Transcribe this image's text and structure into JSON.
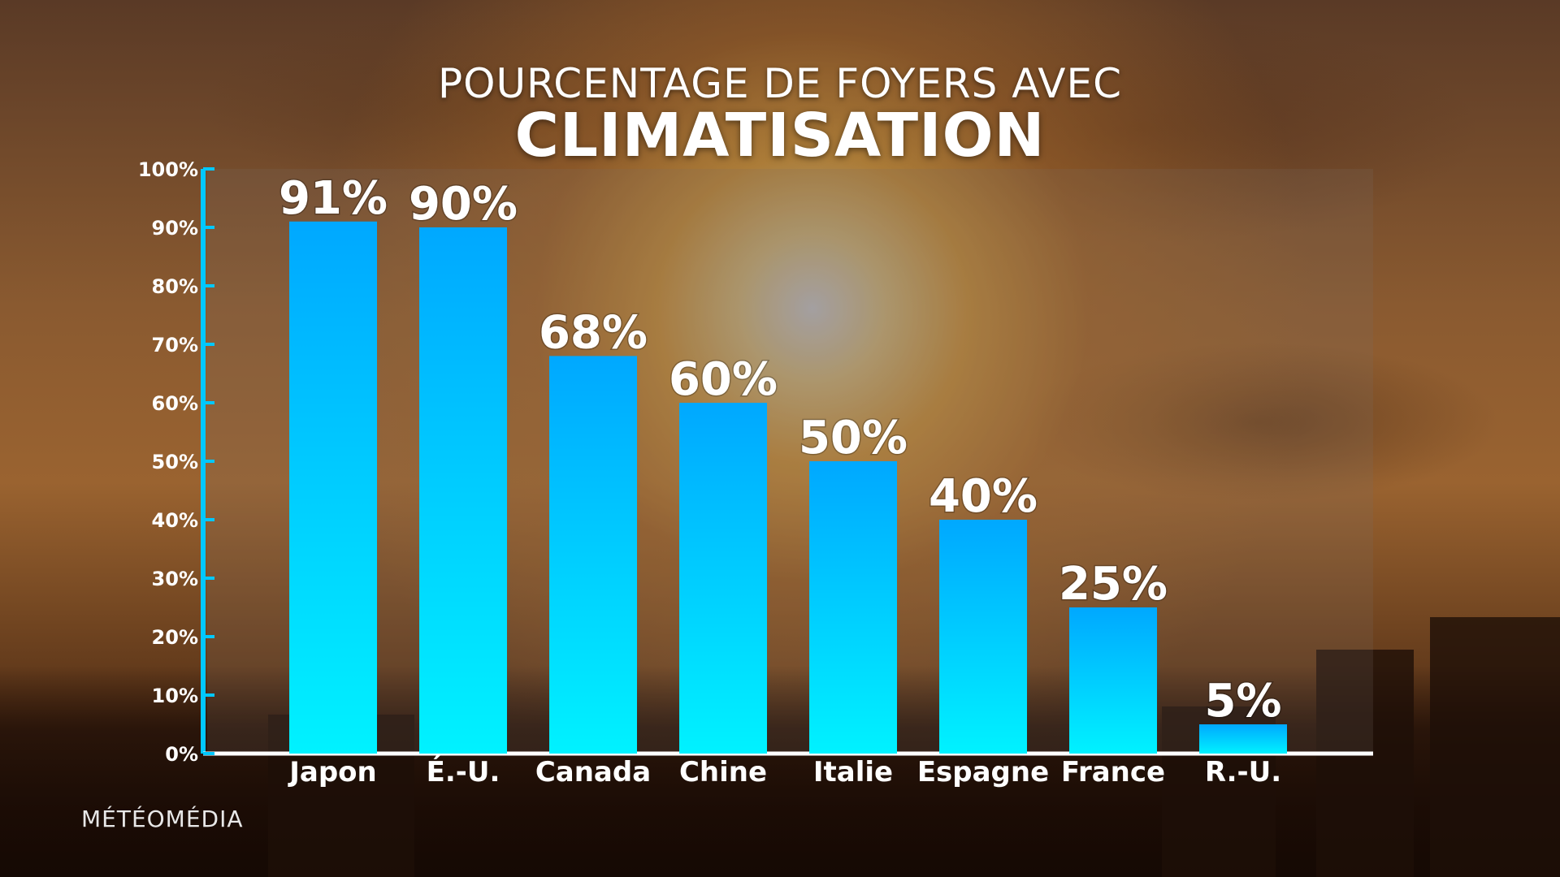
{
  "chart_data": {
    "type": "bar",
    "title_line1": "POURCENTAGE DE FOYERS AVEC",
    "title_line2": "CLIMATISATION",
    "categories": [
      "Japon",
      "É.-U.",
      "Canada",
      "Chine",
      "Italie",
      "Espagne",
      "France",
      "R.-U."
    ],
    "values": [
      91,
      90,
      68,
      60,
      50,
      40,
      25,
      5
    ],
    "value_labels": [
      "91%",
      "90%",
      "68%",
      "60%",
      "50%",
      "40%",
      "25%",
      "5%"
    ],
    "yticks": [
      "0%",
      "10%",
      "20%",
      "30%",
      "40%",
      "50%",
      "60%",
      "70%",
      "80%",
      "90%",
      "100%"
    ],
    "ylim": [
      0,
      100
    ],
    "grid": false,
    "bar_color_top": "#00a8ff",
    "bar_color_bottom": "#00f2ff",
    "axis_color": "#00c8ff"
  },
  "brand": "MÉTÉOMÉDIA"
}
